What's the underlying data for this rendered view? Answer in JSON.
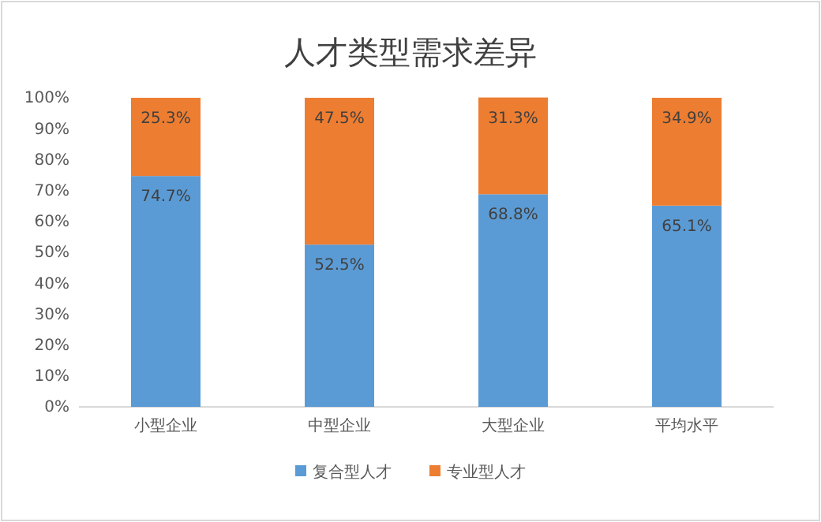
{
  "chart_data": {
    "type": "bar",
    "title": "人才类型需求差异",
    "stacked": true,
    "legend": "bottom",
    "categories": [
      "小型企业",
      "中型企业",
      "大型企业",
      "平均水平"
    ],
    "series": [
      {
        "name": "复合型人才",
        "color": "#5b9bd5",
        "values": [
          74.7,
          52.5,
          68.8,
          65.1
        ],
        "value_labels": [
          "74.7%",
          "52.5%",
          "68.8%",
          "65.1%"
        ]
      },
      {
        "name": "专业型人才",
        "color": "#ed7d31",
        "values": [
          25.3,
          47.5,
          31.3,
          34.9
        ],
        "value_labels": [
          "25.3%",
          "47.5%",
          "31.3%",
          "34.9%"
        ]
      }
    ],
    "ylim": [
      0,
      100
    ],
    "yticks": [
      {
        "value": 0,
        "label": "0%"
      },
      {
        "value": 10,
        "label": "10%"
      },
      {
        "value": 20,
        "label": "20%"
      },
      {
        "value": 30,
        "label": "30%"
      },
      {
        "value": 40,
        "label": "40%"
      },
      {
        "value": 50,
        "label": "50%"
      },
      {
        "value": 60,
        "label": "60%"
      },
      {
        "value": 70,
        "label": "70%"
      },
      {
        "value": 80,
        "label": "80%"
      },
      {
        "value": 90,
        "label": "90%"
      },
      {
        "value": 100,
        "label": "100%"
      }
    ]
  }
}
